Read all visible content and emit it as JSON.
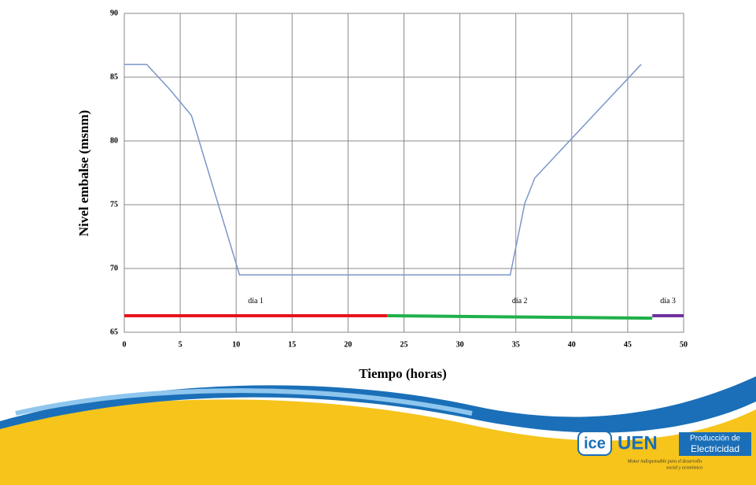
{
  "chart_data": {
    "type": "line",
    "xlabel": "Tiempo (horas)",
    "ylabel": "Nivel embalse (msnm)",
    "xlim": [
      0,
      50
    ],
    "xticks": [
      0,
      5,
      10,
      15,
      20,
      25,
      30,
      35,
      40,
      45,
      50
    ],
    "ylim": [
      65,
      90
    ],
    "yticks": [
      65,
      70,
      75,
      80,
      85,
      90
    ],
    "grid": true,
    "series": [
      {
        "color": "#7b96c9",
        "x": [
          0,
          2,
          4,
          6,
          10.3,
          34.5,
          35.8,
          36.7,
          46.2
        ],
        "values": [
          86,
          86,
          84.1,
          82,
          69.5,
          69.5,
          75.1,
          77.1,
          86
        ]
      },
      {
        "name": "día 1",
        "color": "#e8141c",
        "x": [
          0,
          23.5
        ],
        "values": [
          66.3,
          66.3
        ]
      },
      {
        "name": "día 2",
        "color": "#1fb04a",
        "x": [
          23.5,
          47.2
        ],
        "values": [
          66.3,
          66.1
        ]
      },
      {
        "name": "día 3",
        "color": "#7030a0",
        "x": [
          47.2,
          50
        ],
        "values": [
          66.3,
          66.3
        ]
      }
    ]
  },
  "logo": {
    "brand": "ice",
    "unit": "UEN",
    "line1": "Producción de",
    "line2": "Electricidad",
    "tagline1": "Motor indispensable para el desarrollo",
    "tagline2": "social y económico"
  }
}
